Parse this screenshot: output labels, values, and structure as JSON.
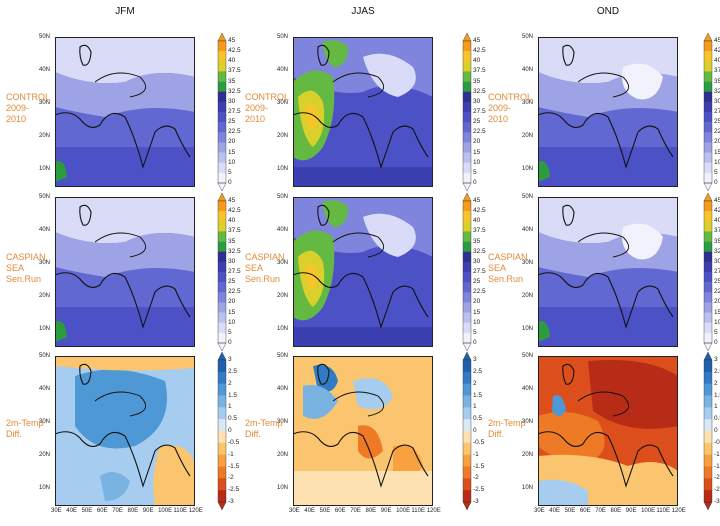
{
  "columns": [
    "JFM",
    "JJAS",
    "OND"
  ],
  "rows": [
    {
      "label_lines": [
        "CONTROL",
        "2009-",
        "2010"
      ],
      "type": "temp"
    },
    {
      "label_lines": [
        "CASPIAN",
        "SEA",
        "Sen.Run"
      ],
      "type": "temp"
    },
    {
      "label_lines": [
        "2m-Temp",
        "Diff."
      ],
      "type": "diff"
    }
  ],
  "lat_ticks": [
    "50N",
    "40N",
    "30N",
    "20N",
    "10N"
  ],
  "lon_ticks": [
    "30E",
    "40E",
    "50E",
    "60E",
    "70E",
    "80E",
    "90E",
    "100E",
    "110E",
    "120E"
  ],
  "temp_colorbar": {
    "levels": [
      "45",
      "42.5",
      "40",
      "37.5",
      "35",
      "32.5",
      "30",
      "27.5",
      "25",
      "22.5",
      "20",
      "15",
      "10",
      "5",
      "0"
    ],
    "colors": [
      "#f59b1f",
      "#f7c52a",
      "#d9d02b",
      "#64b942",
      "#2c9d3e",
      "#2f2f93",
      "#3b3fb0",
      "#4c52c6",
      "#6268d1",
      "#7f85dc",
      "#9ea3e6",
      "#bcc0ef",
      "#d9dbf7",
      "#f1f2fc"
    ]
  },
  "diff_colorbar": {
    "levels": [
      "3",
      "2.5",
      "2",
      "1.5",
      "1",
      "0.5",
      "0",
      "-0.5",
      "-1",
      "-1.5",
      "-2",
      "-2.5",
      "-3"
    ],
    "colors": [
      "#1f5fae",
      "#2f7cc5",
      "#4f98d6",
      "#79b3e2",
      "#a6cdef",
      "#d8e8f6",
      "#fde1b0",
      "#fbc56f",
      "#f7a23f",
      "#ee7a25",
      "#dc4f1c",
      "#b82b16"
    ]
  },
  "chart_data": {
    "type": "heatmap",
    "title": "",
    "panels": "3x3 map grid: rows CONTROL 2009-2010, CASPIAN SEA Sen.Run, 2m-Temp Diff.; columns JFM, JJAS, OND",
    "xaxis": {
      "label": "",
      "ticks": [
        "30E",
        "40E",
        "50E",
        "60E",
        "70E",
        "80E",
        "90E",
        "100E",
        "110E",
        "120E"
      ],
      "range": [
        30,
        120
      ]
    },
    "yaxis": {
      "label": "",
      "ticks": [
        "10N",
        "20N",
        "30N",
        "40N",
        "50N"
      ],
      "range": [
        5,
        50
      ]
    },
    "colorbars": [
      {
        "rows": "CONTROL / CASPIAN SEA",
        "range": [
          0,
          45
        ]
      },
      {
        "rows": "2m-Temp Diff.",
        "range": [
          -3,
          3
        ]
      }
    ],
    "grid": false
  }
}
